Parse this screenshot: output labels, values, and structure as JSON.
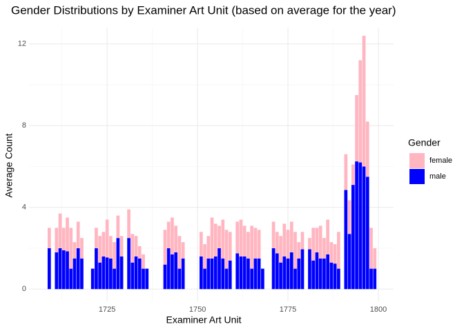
{
  "chart_data": {
    "type": "bar",
    "stacked": true,
    "title": "Gender Distributions by Examiner Art Unit (based on average for the year)",
    "x_label": "Examiner Art Unit",
    "y_label": "Average Count",
    "legend_title": "Gender",
    "x": [
      1709,
      1711,
      1712,
      1713,
      1714,
      1715,
      1716,
      1717,
      1718,
      1721,
      1722,
      1723,
      1724,
      1725,
      1726,
      1727,
      1728,
      1729,
      1731,
      1732,
      1733,
      1734,
      1735,
      1736,
      1741,
      1742,
      1743,
      1744,
      1745,
      1746,
      1751,
      1752,
      1753,
      1754,
      1755,
      1756,
      1757,
      1758,
      1759,
      1761,
      1762,
      1763,
      1764,
      1765,
      1766,
      1767,
      1768,
      1771,
      1772,
      1773,
      1774,
      1775,
      1776,
      1777,
      1778,
      1779,
      1781,
      1782,
      1783,
      1784,
      1785,
      1786,
      1787,
      1788,
      1789,
      1791,
      1792,
      1793,
      1794,
      1795,
      1796,
      1797,
      1798,
      1799
    ],
    "series": [
      {
        "name": "female",
        "color": "#ffb6c1",
        "values": [
          1,
          1.2,
          1.7,
          1.1,
          1.65,
          2,
          0.8,
          1.3,
          1,
          0,
          1,
          1.3,
          1.2,
          1.85,
          1.1,
          1.3,
          1.1,
          1,
          1.4,
          1.4,
          1,
          0.6,
          0.7,
          0,
          1.7,
          1.3,
          1.8,
          1.3,
          1.6,
          0.8,
          1.2,
          1.2,
          1.1,
          2,
          1.6,
          1.1,
          1.9,
          1.9,
          1.4,
          1.55,
          1.8,
          1.5,
          1.3,
          2.1,
          1.5,
          1.4,
          0,
          1.3,
          1.05,
          1.3,
          1.6,
          1.4,
          1.5,
          1.8,
          0.8,
          0.85,
          0.55,
          1.6,
          1.2,
          1.6,
          1,
          1.7,
          1,
          0.95,
          1.8,
          1.75,
          1.65,
          1,
          3.25,
          5,
          6.4,
          2.7,
          2,
          1
        ]
      },
      {
        "name": "male",
        "color": "#0000ff",
        "values": [
          2,
          1.8,
          2,
          1.9,
          1.85,
          1,
          1.5,
          2,
          1.5,
          1,
          2,
          1.3,
          1.6,
          1.55,
          1.5,
          1,
          2.5,
          1.6,
          2.5,
          1.3,
          1.6,
          1.5,
          1,
          1,
          1.2,
          2,
          1.7,
          1.8,
          1,
          1.5,
          1.6,
          1,
          1.5,
          1.5,
          1.6,
          2,
          1.5,
          1,
          1.4,
          1.75,
          1.6,
          1.6,
          1.5,
          1,
          1.5,
          1.5,
          1,
          2,
          1.75,
          1.3,
          1.6,
          1.5,
          1.8,
          1,
          1.5,
          1.95,
          1.95,
          1.4,
          1.8,
          1.5,
          1.5,
          1.7,
          1.3,
          1.25,
          1,
          4.85,
          2.7,
          5.1,
          6.25,
          6.2,
          6,
          5.5,
          1,
          1
        ]
      }
    ],
    "xlim": [
      1703.4,
      1804.2
    ],
    "xticks": [
      1725,
      1750,
      1775,
      1800
    ],
    "ylim": [
      -0.6,
      12.8
    ],
    "yticks": [
      0,
      4,
      8,
      12
    ],
    "grid": true,
    "legend": "right"
  }
}
